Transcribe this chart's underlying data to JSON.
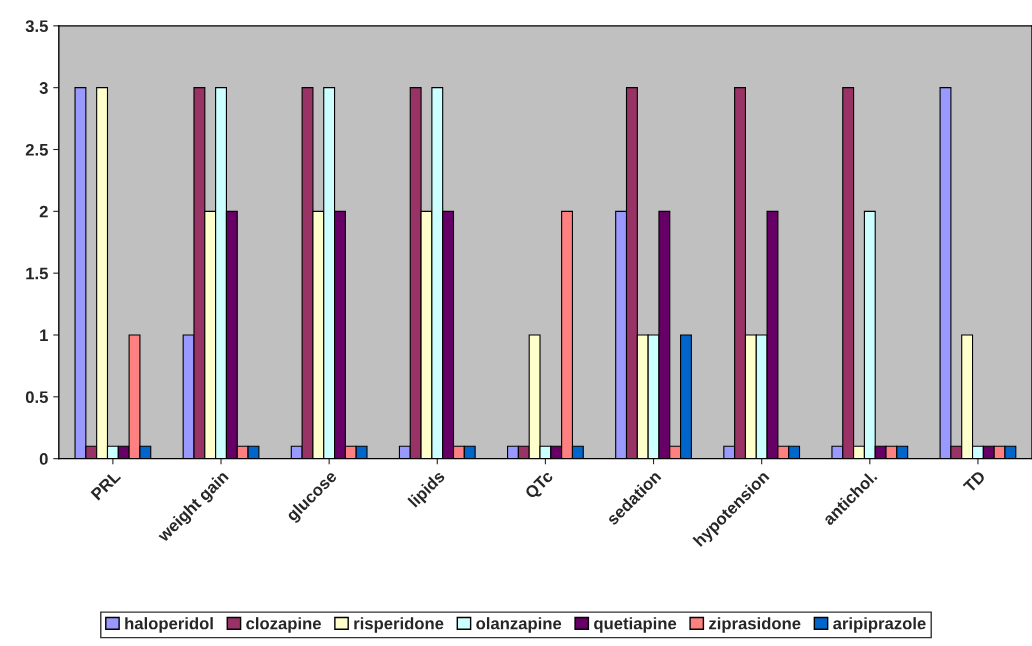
{
  "chart_data": {
    "type": "bar",
    "categories": [
      "PRL",
      "weight gain",
      "glucose",
      "lipids",
      "QTc",
      "sedation",
      "hypotension",
      "antichol.",
      "TD"
    ],
    "series": [
      {
        "name": "haloperidol",
        "color": "#9999ff",
        "values": [
          3,
          1,
          0.1,
          0.1,
          0.1,
          2,
          0.1,
          0.1,
          3
        ]
      },
      {
        "name": "clozapine",
        "color": "#993366",
        "values": [
          0.1,
          3,
          3,
          3,
          0.1,
          3,
          3,
          3,
          0.1
        ]
      },
      {
        "name": "risperidone",
        "color": "#ffffcc",
        "values": [
          3,
          2,
          2,
          2,
          1,
          1,
          1,
          0.1,
          1
        ]
      },
      {
        "name": "olanzapine",
        "color": "#ccffff",
        "values": [
          0.1,
          3,
          3,
          3,
          0.1,
          1,
          1,
          2,
          0.1
        ]
      },
      {
        "name": "quetiapine",
        "color": "#660066",
        "values": [
          0.1,
          2,
          2,
          2,
          0.1,
          2,
          2,
          0.1,
          0.1
        ]
      },
      {
        "name": "ziprasidone",
        "color": "#ff8080",
        "values": [
          1,
          0.1,
          0.1,
          0.1,
          2,
          0.1,
          0.1,
          0.1,
          0.1
        ]
      },
      {
        "name": "aripiprazole",
        "color": "#0066cc",
        "values": [
          0.1,
          0.1,
          0.1,
          0.1,
          0.1,
          1,
          0.1,
          0.1,
          0.1
        ]
      }
    ],
    "ylim": [
      0,
      3.5
    ],
    "yticks": [
      0,
      0.5,
      1,
      1.5,
      2,
      2.5,
      3,
      3.5
    ],
    "grid": false,
    "legend": "bottom"
  }
}
